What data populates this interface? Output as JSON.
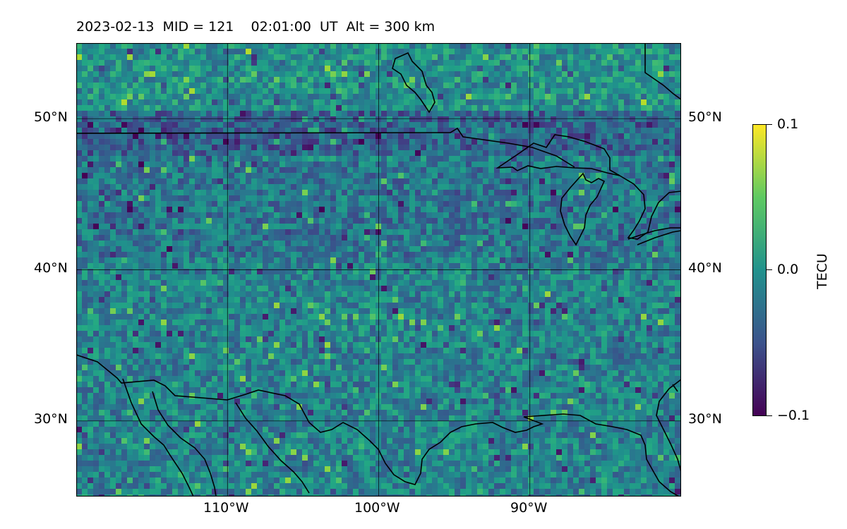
{
  "map": {
    "title": "2023-02-13  MID = 121    02:01:00  UT  Alt = 300 km",
    "lat_labels": [
      "50°N",
      "40°N",
      "30°N"
    ],
    "lon_labels": [
      "110°W",
      "100°W",
      "90°W"
    ],
    "extent": {
      "lon_min": -120,
      "lon_max": -80,
      "lat_min": 25,
      "lat_max": 55
    },
    "gridlines": {
      "lats": [
        50,
        40,
        30
      ],
      "lons": [
        -110,
        -100,
        -90
      ]
    },
    "colorbar": {
      "label": "TECU",
      "ticks": [
        "0.1",
        "0.0",
        "−0.1"
      ],
      "min": -0.1,
      "max": 0.1,
      "colormap": "viridis",
      "colors": [
        "#440154",
        "#3b528b",
        "#21918c",
        "#5ec962",
        "#fde725"
      ]
    },
    "background_color": "#2b7f8e"
  }
}
